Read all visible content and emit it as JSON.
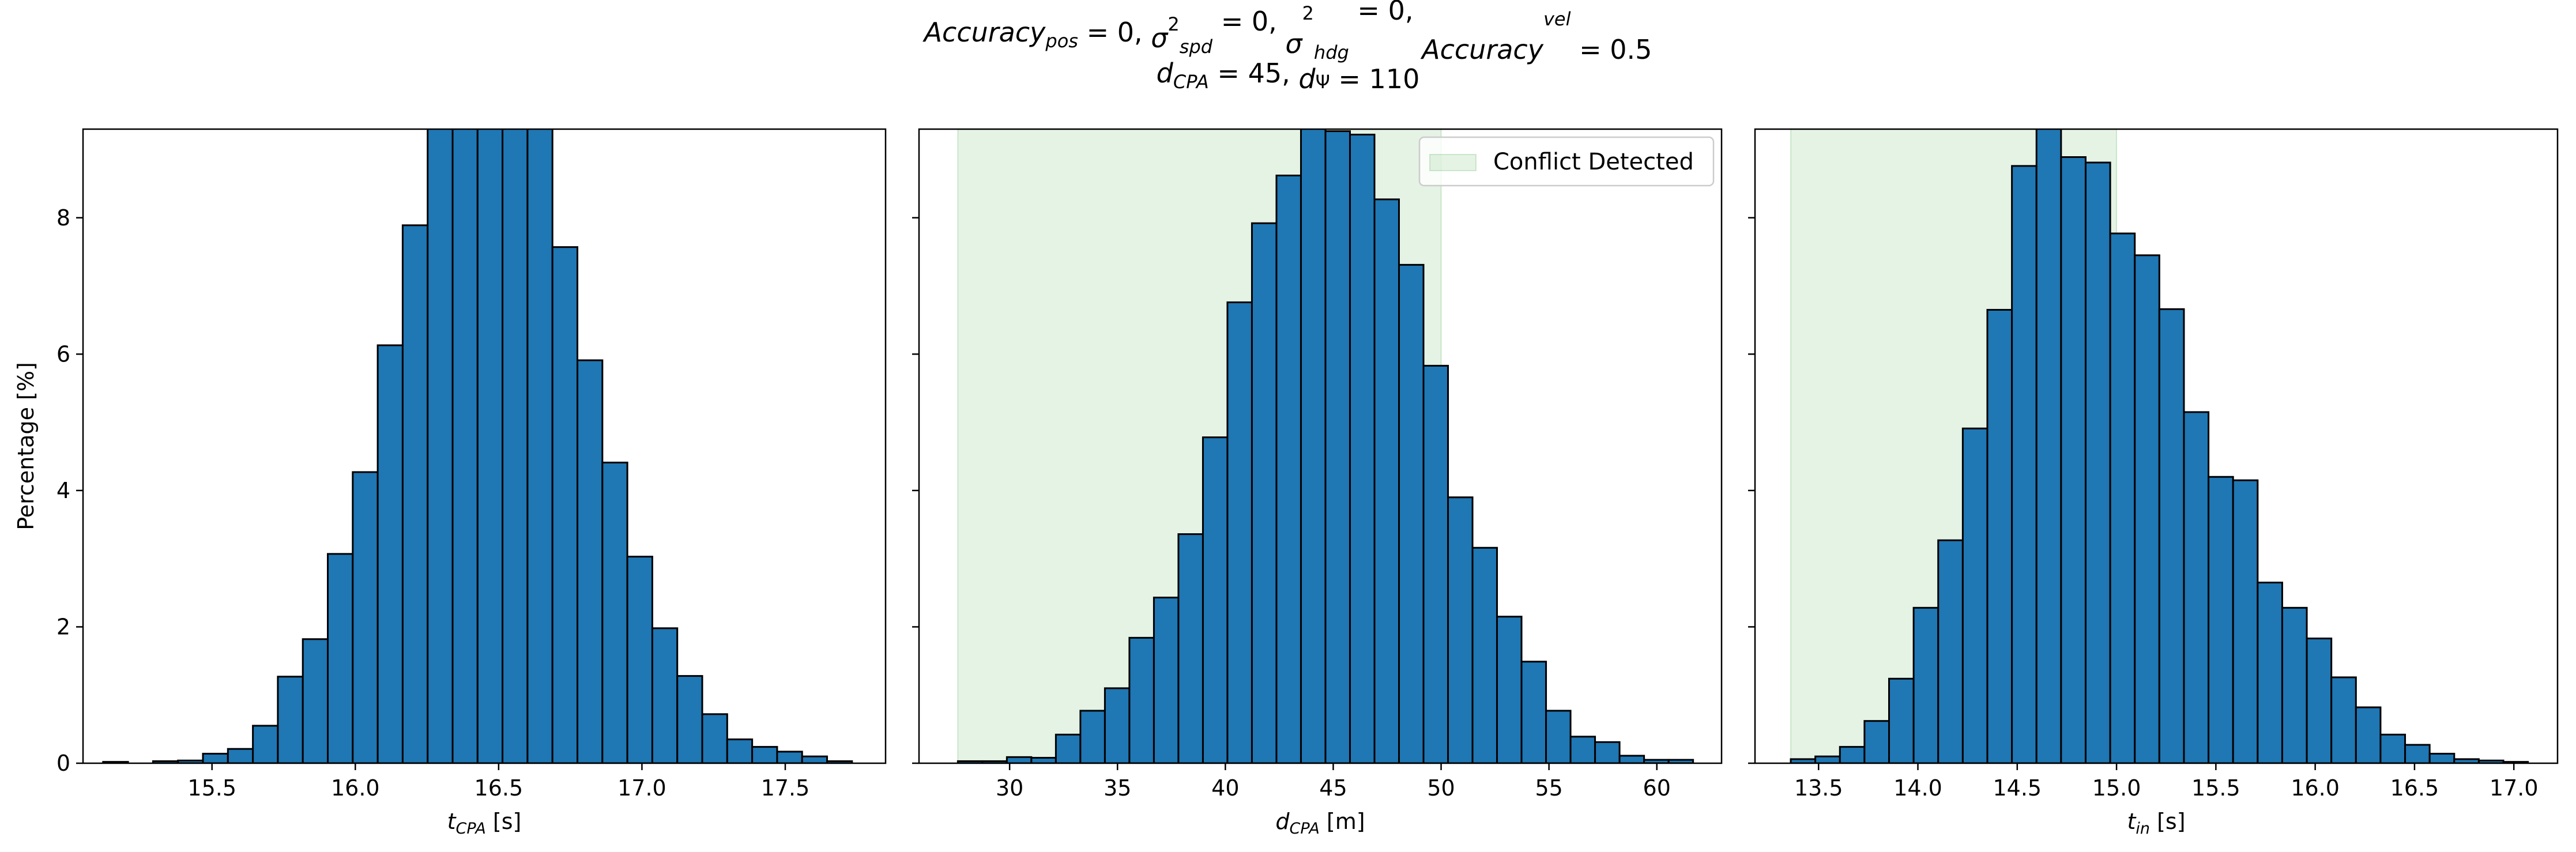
{
  "figure": {
    "title_line1": {
      "parts": [
        {
          "text": "Accuracy",
          "style": "italic"
        },
        {
          "text": "pos",
          "style": "italic-sub"
        },
        {
          "text": " = 0, ",
          "style": "normal"
        },
        {
          "text": "σ",
          "style": "italic"
        },
        {
          "text": "2",
          "style": "sup"
        },
        {
          "text": "spd",
          "style": "italic-sub"
        },
        {
          "text": " = 0, ",
          "style": "normal"
        },
        {
          "text": "σ",
          "style": "italic"
        },
        {
          "text": "2",
          "style": "sup"
        },
        {
          "text": "hdg",
          "style": "italic-sub"
        },
        {
          "text": " = 0, ",
          "style": "normal"
        },
        {
          "text": "Accuracy",
          "style": "italic"
        },
        {
          "text": "vel",
          "style": "italic-sub"
        },
        {
          "text": " = 0.5",
          "style": "normal"
        }
      ]
    },
    "title_line2": {
      "parts": [
        {
          "text": "d",
          "style": "italic"
        },
        {
          "text": "CPA",
          "style": "italic-sub"
        },
        {
          "text": " = 45, ",
          "style": "normal"
        },
        {
          "text": "d",
          "style": "italic"
        },
        {
          "text": "Ψ",
          "style": "sub"
        },
        {
          "text": " = 110",
          "style": "normal"
        }
      ]
    },
    "bar_color": "#1f77b4",
    "shade_color": "#2ca02c"
  },
  "chart_data": [
    {
      "type": "bar",
      "ylabel": "Percentage [%]",
      "xlabel_parts": [
        {
          "text": "t",
          "style": "italic"
        },
        {
          "text": "CPA",
          "style": "italic-sub"
        },
        {
          "text": " [s]",
          "style": "normal"
        }
      ],
      "xlim": [
        15.05,
        17.85
      ],
      "ylim": [
        0,
        9.3
      ],
      "xticks": [
        15.5,
        16.0,
        16.5,
        17.0,
        17.5
      ],
      "xtick_labels": [
        "15.5",
        "16.0",
        "16.5",
        "17.0",
        "17.5"
      ],
      "yticks": [
        0,
        2,
        4,
        6,
        8
      ],
      "ytick_labels": [
        "0",
        "2",
        "4",
        "6",
        "8"
      ],
      "bin_start": 15.12,
      "bin_width": 0.0871,
      "values": [
        0.02,
        0.0,
        0.03,
        0.04,
        0.14,
        0.21,
        0.55,
        1.27,
        1.82,
        3.07,
        4.27,
        6.13,
        7.89,
        11.0,
        11.5,
        10.8,
        11.6,
        10.9,
        7.57,
        5.91,
        4.41,
        3.03,
        1.98,
        1.28,
        0.72,
        0.35,
        0.24,
        0.17,
        0.1,
        0.03
      ]
    },
    {
      "type": "bar",
      "xlabel_parts": [
        {
          "text": "d",
          "style": "italic"
        },
        {
          "text": "CPA",
          "style": "italic-sub"
        },
        {
          "text": " [m]",
          "style": "normal"
        }
      ],
      "xlim": [
        25.8,
        63.0
      ],
      "ylim": [
        0,
        9.3
      ],
      "xticks": [
        30,
        35,
        40,
        45,
        50,
        55,
        60
      ],
      "xtick_labels": [
        "30",
        "35",
        "40",
        "45",
        "50",
        "55",
        "60"
      ],
      "yticks": [
        0,
        2,
        4,
        6,
        8
      ],
      "bin_start": 27.6,
      "bin_width": 1.136,
      "values": [
        0.03,
        0.03,
        0.09,
        0.08,
        0.42,
        0.77,
        1.1,
        1.84,
        2.43,
        3.36,
        4.78,
        6.76,
        7.92,
        8.62,
        9.5,
        9.27,
        9.22,
        8.27,
        7.31,
        5.83,
        3.9,
        3.16,
        2.15,
        1.49,
        0.77,
        0.39,
        0.31,
        0.11,
        0.05,
        0.05
      ],
      "shade_range": [
        27.6,
        50.0
      ],
      "legend": {
        "label": "Conflict Detected",
        "position": "upper right"
      }
    },
    {
      "type": "bar",
      "xlabel_parts": [
        {
          "text": "t",
          "style": "italic"
        },
        {
          "text": "in",
          "style": "italic-sub"
        },
        {
          "text": " [s]",
          "style": "normal"
        }
      ],
      "xlim": [
        13.18,
        17.22
      ],
      "ylim": [
        0,
        9.3
      ],
      "xticks": [
        13.5,
        14.0,
        14.5,
        15.0,
        15.5,
        16.0,
        16.5,
        17.0
      ],
      "xtick_labels": [
        "13.5",
        "14.0",
        "14.5",
        "15.0",
        "15.5",
        "16.0",
        "16.5",
        "17.0"
      ],
      "yticks": [
        0,
        2,
        4,
        6,
        8
      ],
      "bin_start": 13.36,
      "bin_width": 0.1237,
      "values": [
        0.06,
        0.1,
        0.24,
        0.62,
        1.24,
        2.28,
        3.27,
        4.91,
        6.65,
        8.76,
        9.5,
        8.89,
        8.81,
        7.77,
        7.45,
        6.66,
        5.15,
        4.2,
        4.15,
        2.65,
        2.28,
        1.83,
        1.26,
        0.82,
        0.42,
        0.27,
        0.14,
        0.06,
        0.04,
        0.02
      ],
      "shade_range": [
        13.36,
        15.0
      ]
    }
  ]
}
